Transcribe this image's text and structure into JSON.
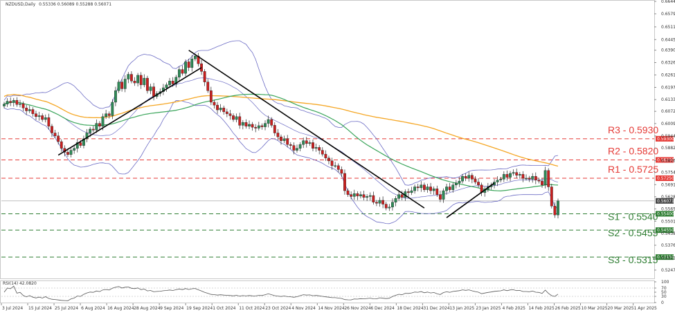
{
  "header": {
    "symbol_label": "NZDUSD,Daily",
    "ohlc_label": "0.55336 0.56089 0.55288 0.56071"
  },
  "rsi_label": "RSI(14) 42.0820",
  "colors": {
    "up_candle": "#2e8b57",
    "down_candle": "#cc1f1f",
    "resistance": "#e53935",
    "support": "#2e7d32",
    "ma_orange": "#f5a623",
    "ma_green": "#3aa55a",
    "bollinger": "#6a6ac4",
    "trendline": "#000000",
    "rsi_line": "#555555"
  },
  "chart_data": {
    "type": "candlestick",
    "title": "NZDUSD,Daily",
    "y_axis": {
      "range": [
        0.5215,
        0.6644
      ],
      "ticks": [
        0.6644,
        0.65795,
        0.65115,
        0.64455,
        0.63905,
        0.6326,
        0.62615,
        0.6197,
        0.61335,
        0.60725,
        0.6009,
        0.59445,
        0.5882,
        0.58165,
        0.57545,
        0.56915,
        0.56285,
        0.55655,
        0.5501,
        0.5438,
        0.53765,
        0.5311,
        0.52475
      ]
    },
    "x_axis": {
      "ticks": [
        "3 Jul 2024",
        "15 Jul 2024",
        "25 Jul 2024",
        "6 Aug 2024",
        "16 Aug 2024",
        "28 Aug 2024",
        "9 Sep 2024",
        "19 Sep 2024",
        "1 Oct 2024",
        "11 Oct 2024",
        "23 Oct 2024",
        "4 Nov 2024",
        "14 Nov 2024",
        "26 Nov 2024",
        "6 Dec 2024",
        "18 Dec 2024",
        "31 Dec 2024",
        "13 Jan 2025",
        "23 Jan 2025",
        "4 Feb 2025",
        "14 Feb 2025",
        "26 Feb 2025",
        "10 Mar 2025",
        "20 Mar 2025",
        "1 Apr 2025"
      ]
    },
    "levels": [
      {
        "name": "R3",
        "value": 0.593,
        "type": "resistance",
        "text": "R3 - 0.5930",
        "axis_tag": "0.59300"
      },
      {
        "name": "R2",
        "value": 0.582,
        "type": "resistance",
        "text": "R2 - 0.5820",
        "axis_tag": "0.58200"
      },
      {
        "name": "R1",
        "value": 0.5725,
        "type": "resistance",
        "text": "R1 - 0.5725",
        "axis_tag": "0.57250"
      },
      {
        "name": "S1",
        "value": 0.554,
        "type": "support",
        "text": "S1 - 0.5540",
        "axis_tag": "0.55400"
      },
      {
        "name": "S2",
        "value": 0.5455,
        "type": "support",
        "text": "S2 - 0.5455",
        "axis_tag": "0.54550"
      },
      {
        "name": "S3",
        "value": 0.5315,
        "type": "support",
        "text": "S3 - 0.5315",
        "axis_tag": "0.53150"
      }
    ],
    "current_price": {
      "value": 0.56071,
      "text": "0.56071"
    },
    "price_close": [
      0.611,
      0.6125,
      0.6118,
      0.613,
      0.6108,
      0.6112,
      0.609,
      0.6075,
      0.6082,
      0.606,
      0.6045,
      0.605,
      0.603,
      0.604,
      0.5995,
      0.596,
      0.5945,
      0.5915,
      0.588,
      0.586,
      0.5848,
      0.587,
      0.588,
      0.591,
      0.5895,
      0.593,
      0.596,
      0.598,
      0.5975,
      0.601,
      0.5995,
      0.6045,
      0.606,
      0.605,
      0.612,
      0.618,
      0.6225,
      0.619,
      0.624,
      0.6265,
      0.623,
      0.622,
      0.626,
      0.621,
      0.6245,
      0.618,
      0.62,
      0.615,
      0.6165,
      0.6175,
      0.6195,
      0.621,
      0.623,
      0.6215,
      0.625,
      0.629,
      0.627,
      0.633,
      0.63,
      0.6345,
      0.636,
      0.632,
      0.628,
      0.6225,
      0.618,
      0.612,
      0.6105,
      0.608,
      0.609,
      0.607,
      0.606,
      0.605,
      0.603,
      0.6045,
      0.6,
      0.6015,
      0.5995,
      0.6005,
      0.599,
      0.5985,
      0.5998,
      0.5992,
      0.601,
      0.603,
      0.6,
      0.596,
      0.594,
      0.592,
      0.593,
      0.59,
      0.5895,
      0.587,
      0.588,
      0.59,
      0.592,
      0.5905,
      0.591,
      0.588,
      0.5885,
      0.587,
      0.585,
      0.583,
      0.5815,
      0.579,
      0.579,
      0.577,
      0.575,
      0.566,
      0.564,
      0.563,
      0.5645,
      0.5632,
      0.564,
      0.5625,
      0.563,
      0.5635,
      0.56,
      0.5595,
      0.561,
      0.559,
      0.557,
      0.5575,
      0.56,
      0.562,
      0.564,
      0.5625,
      0.5655,
      0.565,
      0.566,
      0.568,
      0.5675,
      0.569,
      0.5665,
      0.568,
      0.566,
      0.567,
      0.564,
      0.5615,
      0.566,
      0.568,
      0.5665,
      0.569,
      0.57,
      0.571,
      0.5735,
      0.5725,
      0.574,
      0.572,
      0.5705,
      0.569,
      0.565,
      0.5665,
      0.568,
      0.569,
      0.5705,
      0.5715,
      0.572,
      0.5745,
      0.573,
      0.575,
      0.5755,
      0.574,
      0.5745,
      0.5725,
      0.5725,
      0.572,
      0.5735,
      0.5715,
      0.571,
      0.569,
      0.5765,
      0.568,
      0.558,
      0.5534,
      0.5607
    ]
  }
}
